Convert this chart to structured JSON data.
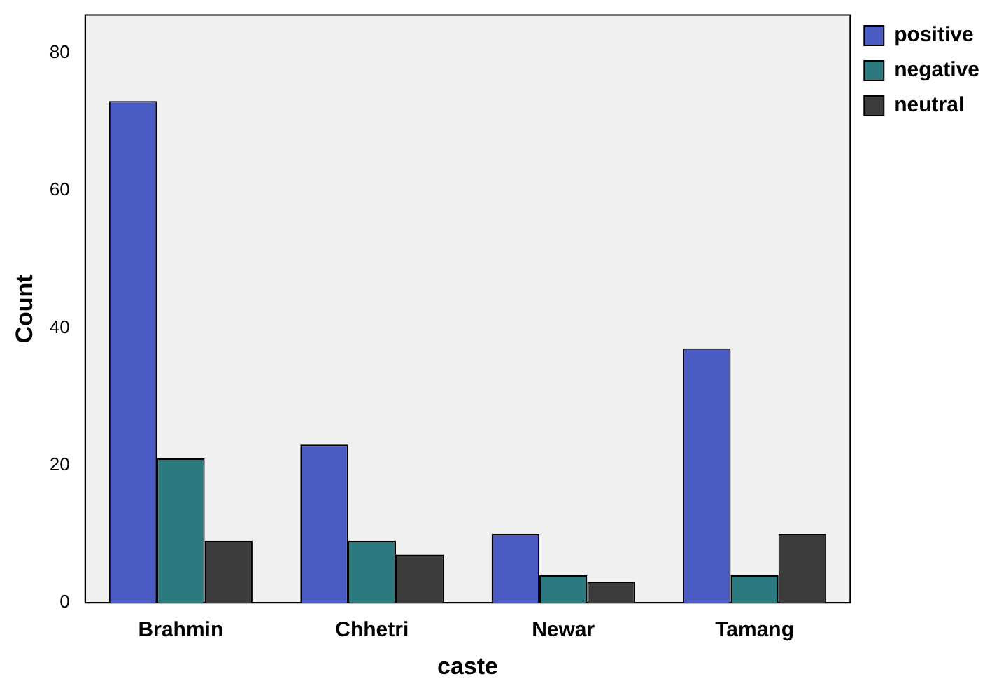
{
  "chart_data": {
    "type": "bar",
    "xlabel": "caste",
    "ylabel": "Count",
    "categories": [
      "Brahmin",
      "Chhetri",
      "Newar",
      "Tamang"
    ],
    "series": [
      {
        "name": "positive",
        "color": "#4a5cc4",
        "values": [
          73,
          23,
          10,
          37
        ]
      },
      {
        "name": "negative",
        "color": "#2a7a80",
        "values": [
          21,
          9,
          4,
          4
        ]
      },
      {
        "name": "neutral",
        "color": "#3c3c3c",
        "values": [
          9,
          7,
          3,
          10
        ]
      }
    ],
    "ylim": [
      0,
      85.5
    ],
    "yticks": [
      0,
      20,
      40,
      60,
      80
    ],
    "grid": false,
    "legend": "right"
  }
}
